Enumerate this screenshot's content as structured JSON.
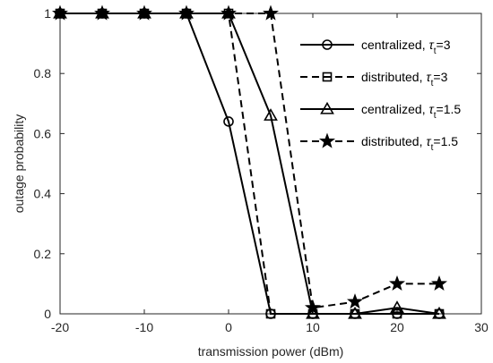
{
  "chart_data": {
    "type": "line",
    "title": "",
    "xlabel": "transmission power (dBm)",
    "ylabel": "outage probability",
    "xlim": [
      -20,
      30
    ],
    "ylim": [
      0,
      1
    ],
    "xticks": [
      -20,
      -10,
      0,
      10,
      20,
      30
    ],
    "yticks": [
      0,
      0.2,
      0.4,
      0.6,
      0.8,
      1
    ],
    "xtick_labels": [
      "-20",
      "-10",
      "0",
      "10",
      "20",
      "30"
    ],
    "ytick_labels": [
      "0",
      "0.2",
      "0.4",
      "0.6",
      "0.8",
      "1"
    ],
    "legend_position": "top-right",
    "grid": false,
    "series": [
      {
        "legend": {
          "prefix": "centralized, ",
          "sym": "τ",
          "sub": "t",
          "suffix": "=3"
        },
        "marker": "circle",
        "dash": "solid",
        "color": "#000000",
        "x": [
          -20,
          -15,
          -10,
          -5,
          0,
          5,
          10,
          15,
          20,
          25
        ],
        "y": [
          1,
          1,
          1,
          1,
          0.64,
          0,
          0,
          0,
          0,
          0
        ]
      },
      {
        "legend": {
          "prefix": "distributed, ",
          "sym": "τ",
          "sub": "t",
          "suffix": "=3"
        },
        "marker": "square",
        "dash": "dashed",
        "color": "#000000",
        "x": [
          -20,
          -15,
          -10,
          -5,
          0,
          5,
          10,
          15,
          20,
          25
        ],
        "y": [
          1,
          1,
          1,
          1,
          1,
          0,
          0,
          0,
          0,
          0
        ]
      },
      {
        "legend": {
          "prefix": "centralized, ",
          "sym": "τ",
          "sub": "t",
          "suffix": "=1.5"
        },
        "marker": "triangle",
        "dash": "solid",
        "color": "#000000",
        "x": [
          -20,
          -15,
          -10,
          -5,
          0,
          5,
          10,
          15,
          20,
          25
        ],
        "y": [
          1,
          1,
          1,
          1,
          1,
          0.66,
          0,
          0,
          0.02,
          0
        ]
      },
      {
        "legend": {
          "prefix": "distributed, ",
          "sym": "τ",
          "sub": "t",
          "suffix": "=1.5"
        },
        "marker": "star",
        "dash": "dashed",
        "color": "#000000",
        "x": [
          -20,
          -15,
          -10,
          -5,
          0,
          5,
          10,
          15,
          20,
          25
        ],
        "y": [
          1,
          1,
          1,
          1,
          1,
          1,
          0.02,
          0.04,
          0.1,
          0.1
        ]
      }
    ]
  }
}
